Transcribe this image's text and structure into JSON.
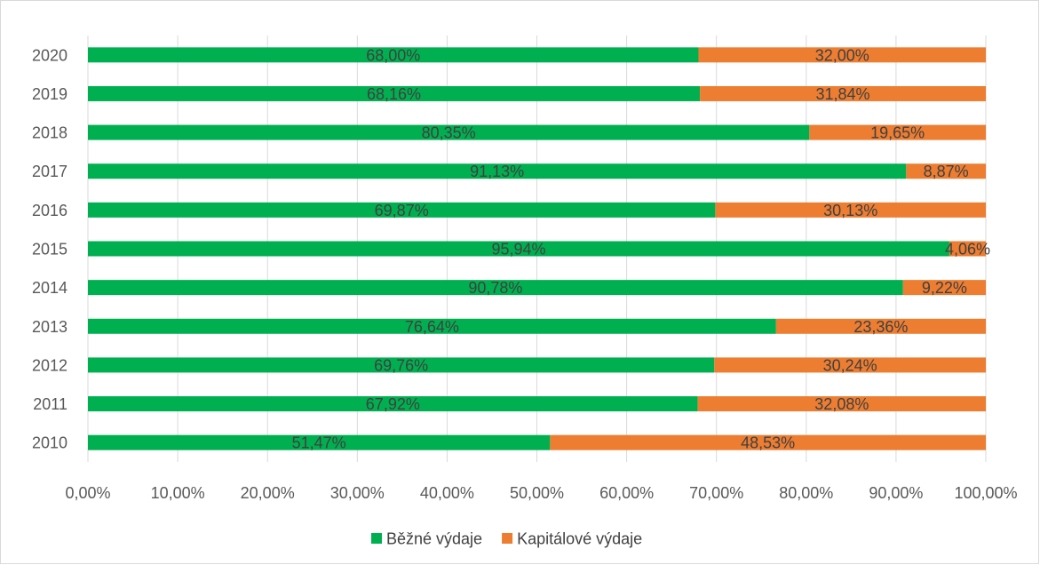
{
  "chart_data": {
    "type": "bar",
    "orientation": "horizontal",
    "stacked": "percent",
    "categories": [
      "2020",
      "2019",
      "2018",
      "2017",
      "2016",
      "2015",
      "2014",
      "2013",
      "2012",
      "2011",
      "2010"
    ],
    "series": [
      {
        "name": "Běžné výdaje",
        "color": "#00b050",
        "values": [
          68.0,
          68.16,
          80.35,
          91.13,
          69.87,
          95.94,
          90.78,
          76.64,
          69.76,
          67.92,
          51.47
        ],
        "labels": [
          "68,00%",
          "68,16%",
          "80,35%",
          "91,13%",
          "69,87%",
          "95,94%",
          "90,78%",
          "76,64%",
          "69,76%",
          "67,92%",
          "51,47%"
        ]
      },
      {
        "name": "Kapitálové výdaje",
        "color": "#ed7d31",
        "values": [
          32.0,
          31.84,
          19.65,
          8.87,
          30.13,
          4.06,
          9.22,
          23.36,
          30.24,
          32.08,
          48.53
        ],
        "labels": [
          "32,00%",
          "31,84%",
          "19,65%",
          "8,87%",
          "30,13%",
          "4,06%",
          "9,22%",
          "23,36%",
          "30,24%",
          "32,08%",
          "48,53%"
        ]
      }
    ],
    "x_ticks": [
      "0,00%",
      "10,00%",
      "20,00%",
      "30,00%",
      "40,00%",
      "50,00%",
      "60,00%",
      "70,00%",
      "80,00%",
      "90,00%",
      "100,00%"
    ],
    "xlim": [
      0,
      100
    ],
    "title": "",
    "xlabel": "",
    "ylabel": "",
    "grid": "vertical",
    "legend_position": "bottom"
  }
}
